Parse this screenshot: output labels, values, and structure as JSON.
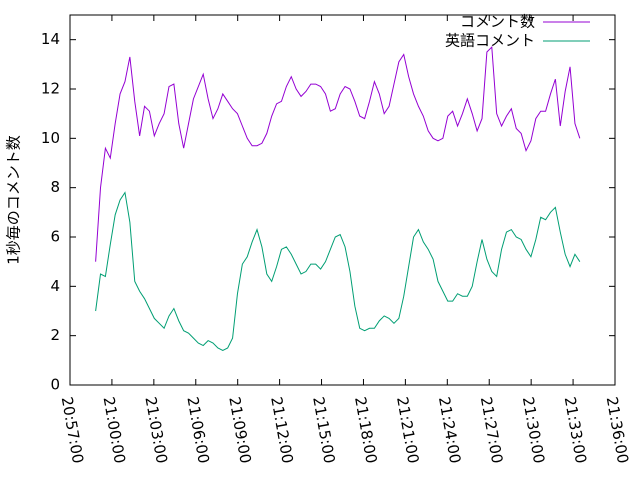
{
  "chart_data": {
    "type": "line",
    "y_label": "1秒毎のコメント数",
    "x": [
      "20:58:50",
      "20:59:11",
      "20:59:32",
      "20:59:53",
      "21:00:14",
      "21:00:35",
      "21:00:56",
      "21:01:17",
      "21:01:38",
      "21:01:59",
      "21:02:20",
      "21:02:41",
      "21:03:02",
      "21:03:23",
      "21:03:44",
      "21:04:05",
      "21:04:26",
      "21:04:47",
      "21:05:08",
      "21:05:29",
      "21:05:50",
      "21:06:11",
      "21:06:32",
      "21:06:53",
      "21:07:14",
      "21:07:35",
      "21:07:56",
      "21:08:17",
      "21:08:38",
      "21:08:59",
      "21:09:20",
      "21:09:41",
      "21:10:02",
      "21:10:23",
      "21:10:44",
      "21:11:05",
      "21:11:26",
      "21:11:47",
      "21:12:08",
      "21:12:29",
      "21:12:50",
      "21:13:11",
      "21:13:32",
      "21:13:53",
      "21:14:14",
      "21:14:35",
      "21:14:56",
      "21:15:17",
      "21:15:38",
      "21:15:59",
      "21:16:20",
      "21:16:41",
      "21:17:02",
      "21:17:23",
      "21:17:44",
      "21:18:05",
      "21:18:26",
      "21:18:47",
      "21:19:08",
      "21:19:29",
      "21:19:50",
      "21:20:11",
      "21:20:32",
      "21:20:53",
      "21:21:14",
      "21:21:35",
      "21:21:56",
      "21:22:17",
      "21:22:38",
      "21:22:59",
      "21:23:20",
      "21:23:41",
      "21:24:02",
      "21:24:23",
      "21:24:44",
      "21:25:05",
      "21:25:26",
      "21:25:47",
      "21:26:08",
      "21:26:29",
      "21:26:50",
      "21:27:11",
      "21:27:32",
      "21:27:53",
      "21:28:14",
      "21:28:35",
      "21:28:56",
      "21:29:17",
      "21:29:38",
      "21:29:59",
      "21:30:20",
      "21:30:41",
      "21:31:02",
      "21:31:23",
      "21:31:44",
      "21:32:05",
      "21:32:26",
      "21:32:47",
      "21:33:08",
      "21:33:29"
    ],
    "series": [
      {
        "name": "コメント数",
        "color": "#9400d3",
        "values": [
          5.0,
          8.0,
          9.6,
          9.2,
          10.6,
          11.8,
          12.3,
          13.3,
          11.5,
          10.1,
          11.3,
          11.1,
          10.1,
          10.6,
          11.0,
          12.1,
          12.2,
          10.6,
          9.6,
          10.6,
          11.6,
          12.1,
          12.6,
          11.6,
          10.8,
          11.2,
          11.8,
          11.5,
          11.2,
          11.0,
          10.5,
          10.0,
          9.7,
          9.7,
          9.8,
          10.2,
          10.9,
          11.4,
          11.5,
          12.1,
          12.5,
          12.0,
          11.7,
          11.9,
          12.2,
          12.2,
          12.1,
          11.8,
          11.1,
          11.2,
          11.8,
          12.1,
          12.0,
          11.5,
          10.9,
          10.8,
          11.5,
          12.3,
          11.8,
          11.0,
          11.3,
          12.2,
          13.1,
          13.4,
          12.5,
          11.8,
          11.3,
          10.9,
          10.3,
          10.0,
          9.9,
          10.0,
          10.9,
          11.1,
          10.5,
          11.0,
          11.6,
          11.0,
          10.3,
          10.8,
          13.5,
          13.7,
          11.0,
          10.5,
          10.9,
          11.2,
          10.4,
          10.2,
          9.5,
          9.9,
          10.8,
          11.1,
          11.1,
          11.8,
          12.4,
          10.5,
          11.9,
          12.9,
          10.6,
          10.0
        ]
      },
      {
        "name": "英語コメント",
        "color": "#009e73",
        "values": [
          3.0,
          4.5,
          4.4,
          5.7,
          6.9,
          7.5,
          7.8,
          6.6,
          4.2,
          3.8,
          3.5,
          3.1,
          2.7,
          2.5,
          2.3,
          2.8,
          3.1,
          2.6,
          2.2,
          2.1,
          1.9,
          1.7,
          1.6,
          1.8,
          1.7,
          1.5,
          1.4,
          1.5,
          1.9,
          3.7,
          4.9,
          5.2,
          5.8,
          6.3,
          5.6,
          4.5,
          4.2,
          4.8,
          5.5,
          5.6,
          5.3,
          4.9,
          4.5,
          4.6,
          4.9,
          4.9,
          4.7,
          5.0,
          5.5,
          6.0,
          6.1,
          5.6,
          4.6,
          3.2,
          2.3,
          2.2,
          2.3,
          2.3,
          2.6,
          2.8,
          2.7,
          2.5,
          2.7,
          3.6,
          4.8,
          6.0,
          6.3,
          5.8,
          5.5,
          5.1,
          4.2,
          3.8,
          3.4,
          3.4,
          3.7,
          3.6,
          3.6,
          4.0,
          5.0,
          5.9,
          5.1,
          4.6,
          4.4,
          5.5,
          6.2,
          6.3,
          6.0,
          5.9,
          5.5,
          5.2,
          5.9,
          6.8,
          6.7,
          7.0,
          7.2,
          6.2,
          5.3,
          4.8,
          5.3,
          5.0
        ]
      }
    ],
    "xlim": [
      "20:57:00",
      "21:36:00"
    ],
    "xticks": [
      "20:57:00",
      "21:00:00",
      "21:03:00",
      "21:06:00",
      "21:09:00",
      "21:12:00",
      "21:15:00",
      "21:18:00",
      "21:21:00",
      "21:24:00",
      "21:27:00",
      "21:30:00",
      "21:33:00",
      "21:36:00"
    ],
    "ylim": [
      0,
      15
    ],
    "yticks": [
      0,
      2,
      4,
      6,
      8,
      10,
      12,
      14
    ],
    "legend": "top-right",
    "grid": false
  }
}
